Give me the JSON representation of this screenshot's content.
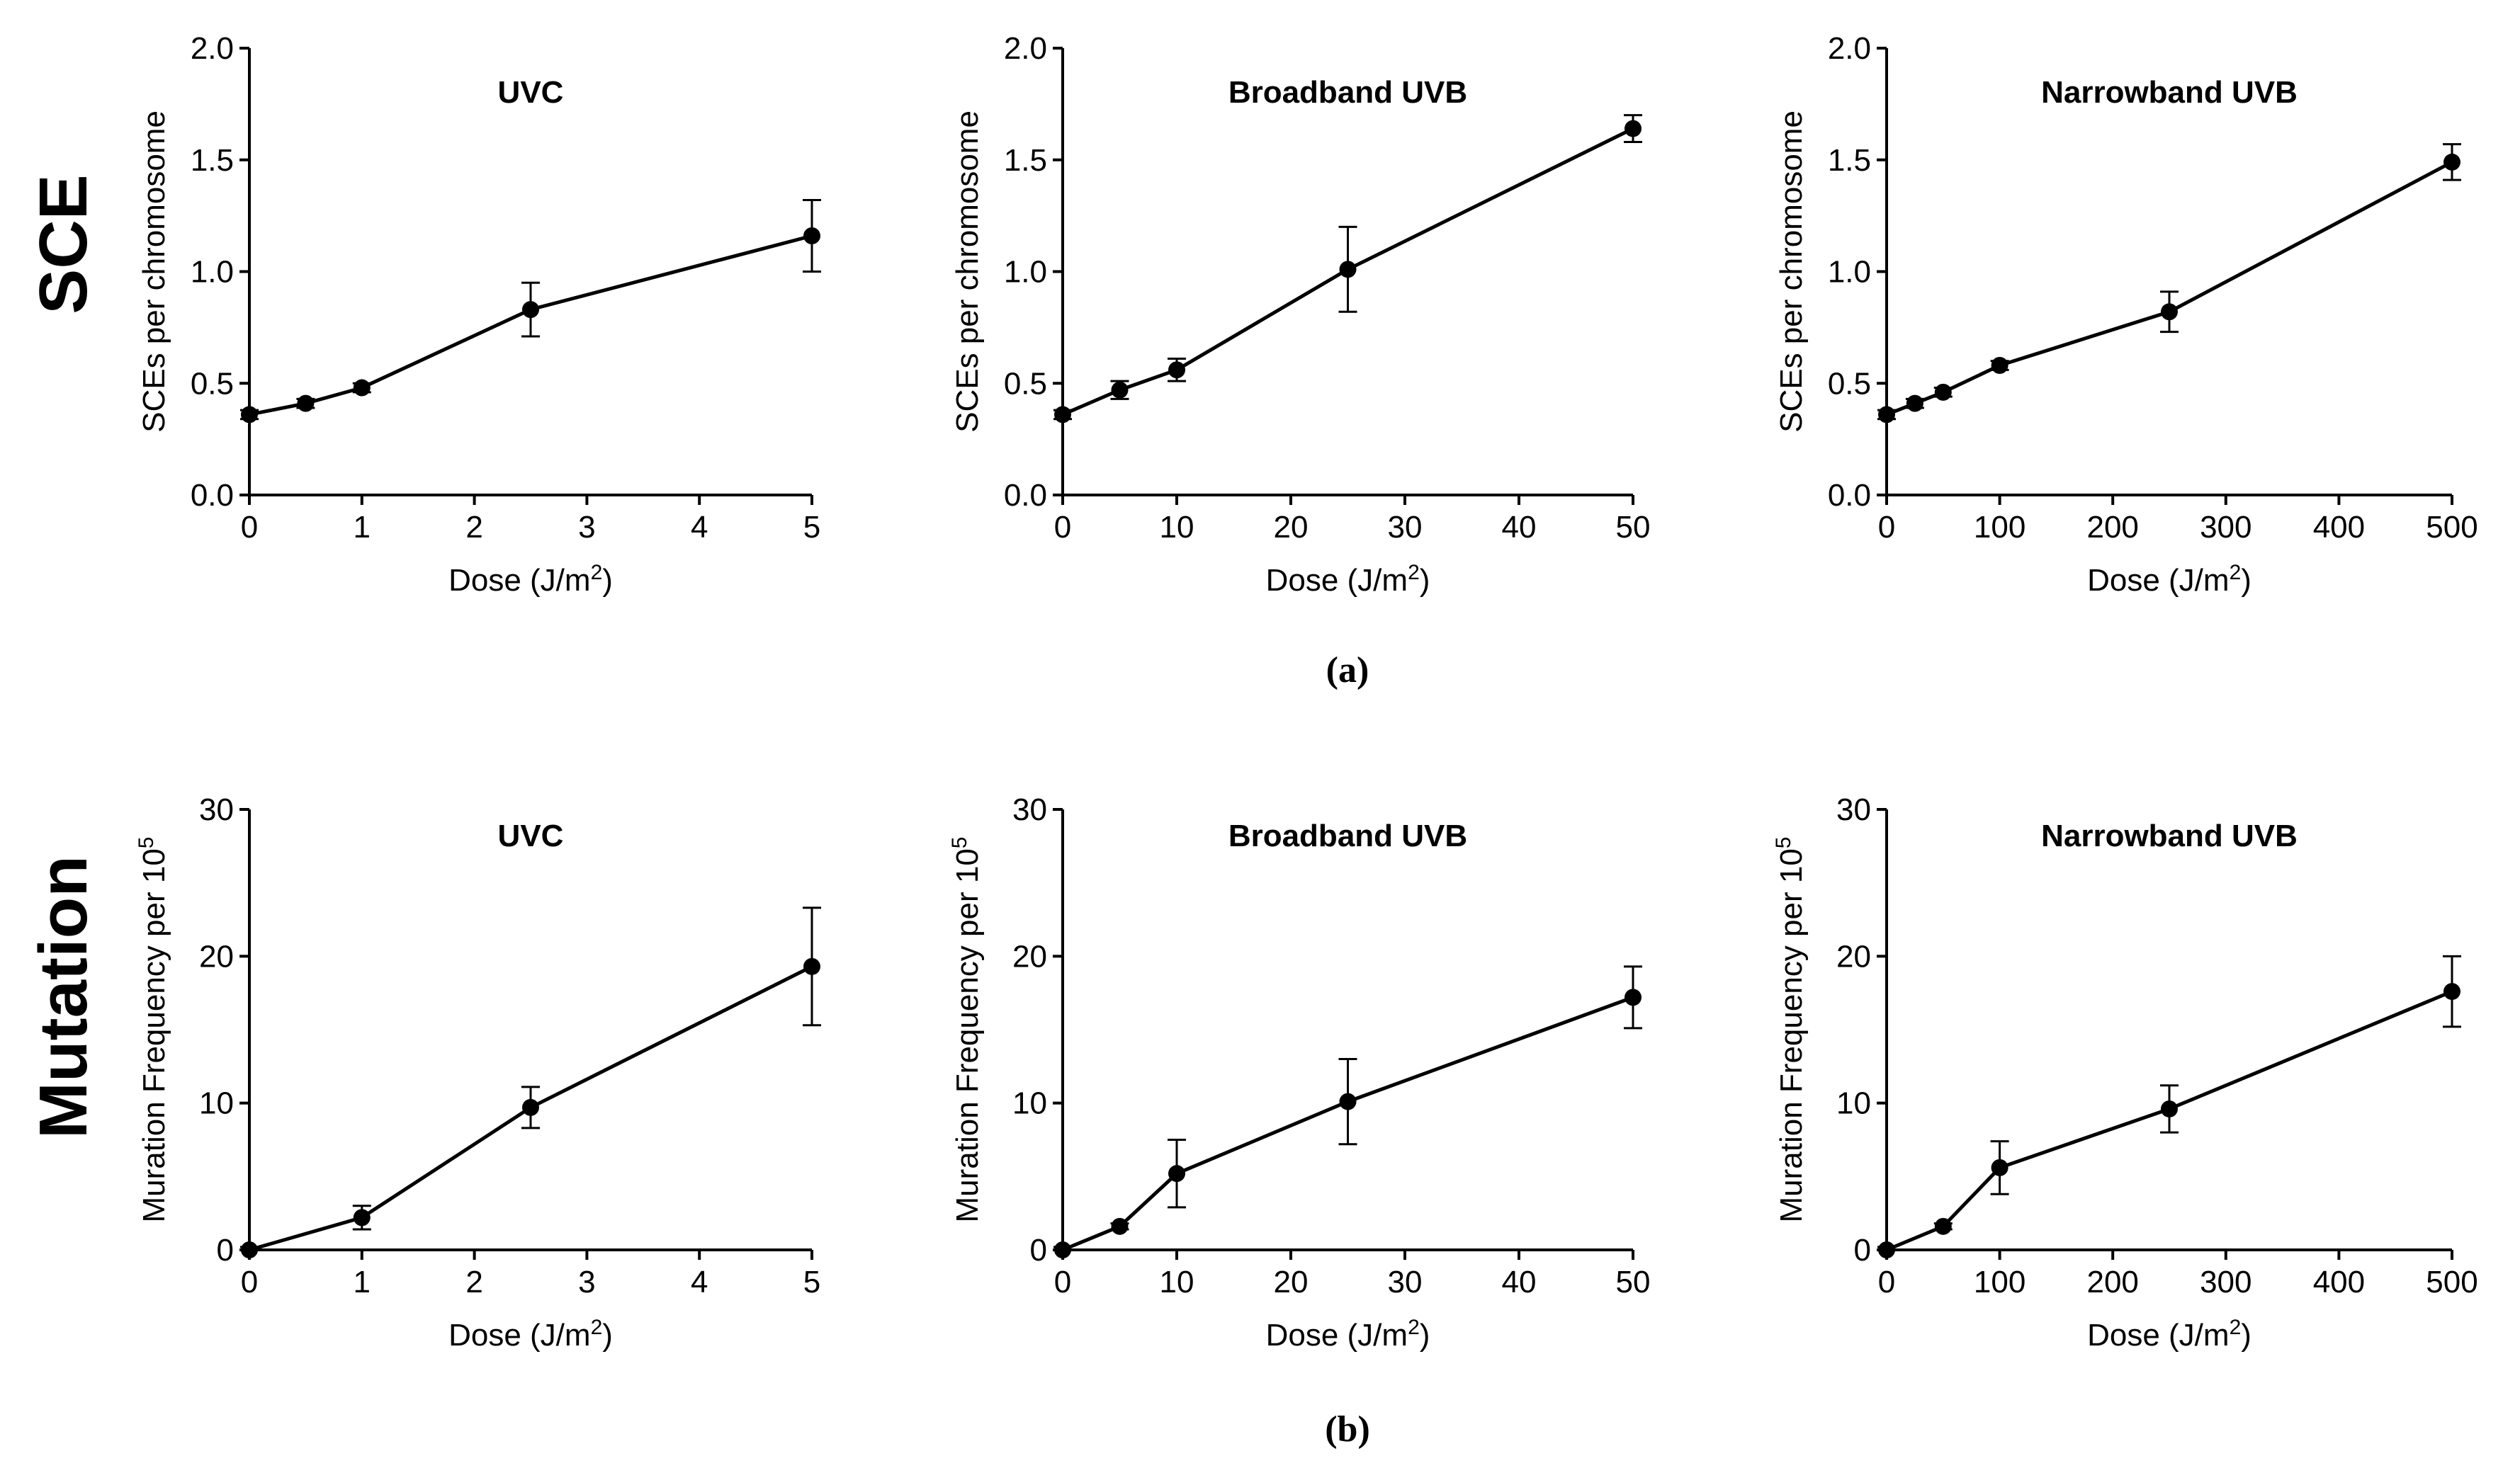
{
  "row_labels": [
    "SCE",
    "Mutation"
  ],
  "panel_labels": [
    "(a)",
    "(b)"
  ],
  "chart_data": [
    {
      "type": "line",
      "row": 0,
      "col": 0,
      "title": "UVC",
      "xlabel": "Dose (J/m",
      "xlabel_sup": "2",
      "xlabel_suffix": ")",
      "ylabel": "SCEs per chromosome",
      "ylabel_sup": "",
      "xlim": [
        0,
        5
      ],
      "ylim": [
        0,
        2
      ],
      "xticks": [
        0,
        1,
        2,
        3,
        4,
        5
      ],
      "yticks": [
        0,
        0.5,
        1,
        1.5,
        2
      ],
      "ytick_labels": [
        "0.0",
        "0.5",
        "1.0",
        "1.5",
        "2.0"
      ],
      "x": [
        0,
        0.5,
        1,
        2.5,
        5
      ],
      "y": [
        0.36,
        0.41,
        0.48,
        0.83,
        1.16
      ],
      "err": [
        0.02,
        0.02,
        0.02,
        0.12,
        0.16
      ]
    },
    {
      "type": "line",
      "row": 0,
      "col": 1,
      "title": "Broadband UVB",
      "xlabel": "Dose (J/m",
      "xlabel_sup": "2",
      "xlabel_suffix": ")",
      "ylabel": "SCEs per chromosome",
      "ylabel_sup": "",
      "xlim": [
        0,
        50
      ],
      "ylim": [
        0,
        2
      ],
      "xticks": [
        0,
        10,
        20,
        30,
        40,
        50
      ],
      "yticks": [
        0,
        0.5,
        1,
        1.5,
        2
      ],
      "ytick_labels": [
        "0.0",
        "0.5",
        "1.0",
        "1.5",
        "2.0"
      ],
      "x": [
        0,
        5,
        10,
        25,
        50
      ],
      "y": [
        0.36,
        0.47,
        0.56,
        1.01,
        1.64
      ],
      "err": [
        0.02,
        0.04,
        0.05,
        0.19,
        0.06
      ]
    },
    {
      "type": "line",
      "row": 0,
      "col": 2,
      "title": "Narrowband UVB",
      "xlabel": "Dose (J/m",
      "xlabel_sup": "2",
      "xlabel_suffix": ")",
      "ylabel": "SCEs per chromosome",
      "ylabel_sup": "",
      "xlim": [
        0,
        500
      ],
      "ylim": [
        0,
        2
      ],
      "xticks": [
        0,
        100,
        200,
        300,
        400,
        500
      ],
      "yticks": [
        0,
        0.5,
        1,
        1.5,
        2
      ],
      "ytick_labels": [
        "0.0",
        "0.5",
        "1.0",
        "1.5",
        "2.0"
      ],
      "x": [
        0,
        25,
        50,
        100,
        250,
        500
      ],
      "y": [
        0.36,
        0.41,
        0.46,
        0.58,
        0.82,
        1.49
      ],
      "err": [
        0.02,
        0.02,
        0.02,
        0.02,
        0.09,
        0.08
      ]
    },
    {
      "type": "line",
      "row": 1,
      "col": 0,
      "title": "UVC",
      "xlabel": "Dose (J/m",
      "xlabel_sup": "2",
      "xlabel_suffix": ")",
      "ylabel": "Muration Frequency per 10",
      "ylabel_sup": "5",
      "xlim": [
        0,
        5
      ],
      "ylim": [
        0,
        30
      ],
      "xticks": [
        0,
        1,
        2,
        3,
        4,
        5
      ],
      "yticks": [
        0,
        10,
        20,
        30
      ],
      "ytick_labels": [
        "0",
        "10",
        "20",
        "30"
      ],
      "x": [
        0,
        1,
        2.5,
        5
      ],
      "y": [
        0,
        2.2,
        9.7,
        19.3
      ],
      "err": [
        0.2,
        0.8,
        1.4,
        4.0
      ]
    },
    {
      "type": "line",
      "row": 1,
      "col": 1,
      "title": "Broadband UVB",
      "xlabel": "Dose (J/m",
      "xlabel_sup": "2",
      "xlabel_suffix": ")",
      "ylabel": "Muration Frequency per 10",
      "ylabel_sup": "5",
      "xlim": [
        0,
        50
      ],
      "ylim": [
        0,
        30
      ],
      "xticks": [
        0,
        10,
        20,
        30,
        40,
        50
      ],
      "yticks": [
        0,
        10,
        20,
        30
      ],
      "ytick_labels": [
        "0",
        "10",
        "20",
        "30"
      ],
      "x": [
        0,
        5,
        10,
        25,
        50
      ],
      "y": [
        0,
        1.6,
        5.2,
        10.1,
        17.2
      ],
      "err": [
        0.2,
        0.2,
        2.3,
        2.9,
        2.1
      ]
    },
    {
      "type": "line",
      "row": 1,
      "col": 2,
      "title": "Narrowband UVB",
      "xlabel": "Dose (J/m",
      "xlabel_sup": "2",
      "xlabel_suffix": ")",
      "ylabel": "Muration Frequency per 10",
      "ylabel_sup": "5",
      "xlim": [
        0,
        500
      ],
      "ylim": [
        0,
        30
      ],
      "xticks": [
        0,
        100,
        200,
        300,
        400,
        500
      ],
      "yticks": [
        0,
        10,
        20,
        30
      ],
      "ytick_labels": [
        "0",
        "10",
        "20",
        "30"
      ],
      "x": [
        0,
        50,
        100,
        250,
        500
      ],
      "y": [
        0,
        1.6,
        5.6,
        9.6,
        17.6
      ],
      "err": [
        0.2,
        0.2,
        1.8,
        1.6,
        2.4
      ]
    }
  ]
}
